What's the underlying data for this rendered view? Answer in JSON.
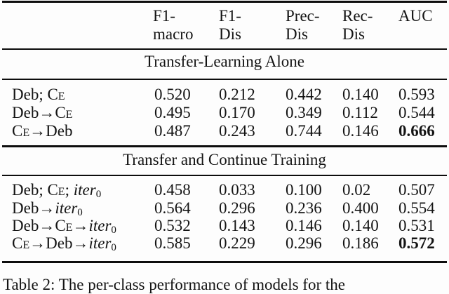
{
  "table": {
    "columns": [
      {
        "line1": "F1-",
        "line2": "macro"
      },
      {
        "line1": "F1-",
        "line2": "Dis"
      },
      {
        "line1": "Prec-",
        "line2": "Dis"
      },
      {
        "line1": "Rec-",
        "line2": "Dis"
      },
      {
        "line1": "AUC",
        "line2": ""
      }
    ],
    "sections": [
      {
        "header": "Transfer-Learning Alone",
        "rows": [
          {
            "label": [
              {
                "text": "Deb; "
              },
              {
                "text": "Ce",
                "style": "smallcaps"
              }
            ],
            "values": [
              "0.520",
              "0.212",
              "0.442",
              "0.140",
              "0.593"
            ],
            "bold": [
              false,
              false,
              false,
              false,
              false
            ]
          },
          {
            "label": [
              {
                "text": "Deb→"
              },
              {
                "text": "Ce",
                "style": "smallcaps"
              }
            ],
            "values": [
              "0.495",
              "0.170",
              "0.349",
              "0.112",
              "0.544"
            ],
            "bold": [
              false,
              false,
              false,
              false,
              false
            ]
          },
          {
            "label": [
              {
                "text": "Ce",
                "style": "smallcaps"
              },
              {
                "text": "→Deb"
              }
            ],
            "values": [
              "0.487",
              "0.243",
              "0.744",
              "0.146",
              "0.666"
            ],
            "bold": [
              false,
              false,
              false,
              false,
              true
            ]
          }
        ]
      },
      {
        "header": "Transfer and Continue Training",
        "rows": [
          {
            "label": [
              {
                "text": "Deb; "
              },
              {
                "text": "Ce",
                "style": "smallcaps"
              },
              {
                "text": "; "
              },
              {
                "text": "iter",
                "style": "italic"
              },
              {
                "text": "0",
                "style": "subscript"
              }
            ],
            "values": [
              "0.458",
              "0.033",
              "0.100",
              "0.02",
              "0.507"
            ],
            "bold": [
              false,
              false,
              false,
              false,
              false
            ]
          },
          {
            "label": [
              {
                "text": "Deb→"
              },
              {
                "text": "iter",
                "style": "italic"
              },
              {
                "text": "0",
                "style": "subscript"
              }
            ],
            "values": [
              "0.564",
              "0.296",
              "0.236",
              "0.400",
              "0.554"
            ],
            "bold": [
              false,
              false,
              false,
              false,
              false
            ]
          },
          {
            "label": [
              {
                "text": "Deb→"
              },
              {
                "text": "Ce",
                "style": "smallcaps"
              },
              {
                "text": "→"
              },
              {
                "text": "iter",
                "style": "italic"
              },
              {
                "text": "0",
                "style": "subscript"
              }
            ],
            "values": [
              "0.532",
              "0.143",
              "0.146",
              "0.140",
              "0.531"
            ],
            "bold": [
              false,
              false,
              false,
              false,
              false
            ]
          },
          {
            "label": [
              {
                "text": "Ce",
                "style": "smallcaps"
              },
              {
                "text": "→Deb→"
              },
              {
                "text": "iter",
                "style": "italic"
              },
              {
                "text": "0",
                "style": "subscript"
              }
            ],
            "values": [
              "0.585",
              "0.229",
              "0.296",
              "0.186",
              "0.572"
            ],
            "bold": [
              false,
              false,
              false,
              false,
              true
            ]
          }
        ]
      }
    ]
  },
  "caption": {
    "text": "Table 2: The per-class performance of models for the"
  },
  "colors": {
    "text": "#141414",
    "rule": "#0d0d0d",
    "background": "#fdfdfd",
    "bold_highlight": "#000000"
  }
}
